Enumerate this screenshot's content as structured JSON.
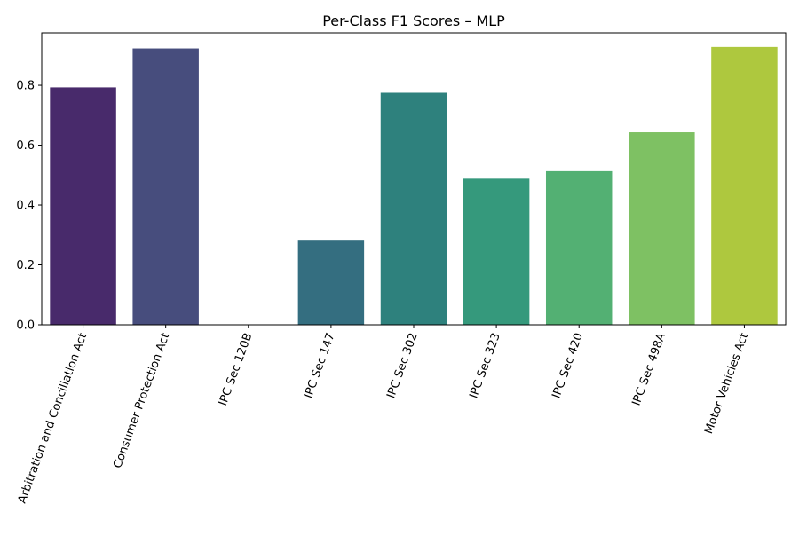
{
  "chart_data": {
    "type": "bar",
    "title": "Per-Class F1 Scores – MLP",
    "xlabel": "",
    "ylabel": "",
    "categories": [
      "Arbitration and Conciliation Act",
      "Consumer Protection Act",
      "IPC Sec 120B",
      "IPC Sec 147",
      "IPC Sec 302",
      "IPC Sec 323",
      "IPC Sec 420",
      "IPC Sec 498A",
      "Motor Vehicles Act"
    ],
    "values": [
      0.793,
      0.923,
      0.0,
      0.281,
      0.775,
      0.488,
      0.513,
      0.643,
      0.928
    ],
    "colors": [
      "#482A6B",
      "#474D7D",
      "#3D6381",
      "#346E80",
      "#2E817D",
      "#35997C",
      "#53B073",
      "#7EC163",
      "#AEC83E"
    ],
    "ylim": [
      0,
      0.975
    ],
    "yticks": [
      "0.0",
      "0.2",
      "0.4",
      "0.6",
      "0.8"
    ],
    "grid": false,
    "legend": "none"
  }
}
